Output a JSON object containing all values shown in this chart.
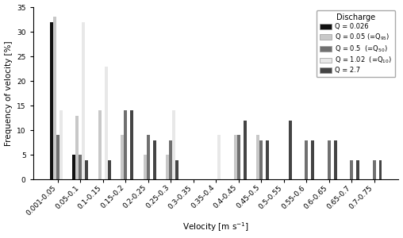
{
  "categories": [
    "0.001-0.05",
    "0.05-0.1",
    "0.1-0.15",
    "0.15-0.2",
    "0.2-0.25",
    "0.25-0.3",
    "0.3-0.35",
    "0.35-0.4",
    "0.4-0.45",
    "0.45-0.5",
    "0.5-0.55",
    "0.55-0.6",
    "0.6-0.65",
    "0.65-0.7",
    "0.7-0.75"
  ],
  "series": [
    {
      "label": "Q = 0.026",
      "color": "#111111",
      "values": [
        32,
        5,
        0,
        0,
        0,
        0,
        0,
        0,
        0,
        0,
        0,
        0,
        0,
        0,
        0
      ]
    },
    {
      "label": "Q = 0.05 (=Q$_{95}$)",
      "color": "#c8c8c8",
      "values": [
        33,
        13,
        14,
        9,
        5,
        5,
        0,
        0,
        9,
        9,
        0,
        0,
        0,
        0,
        0
      ]
    },
    {
      "label": "Q = 0.5  (=Q$_{50}$)",
      "color": "#707070",
      "values": [
        9,
        5,
        0,
        14,
        9,
        8,
        0,
        0,
        9,
        8,
        0,
        8,
        8,
        4,
        4
      ]
    },
    {
      "label": "Q = 1.02  (=Q$_{10}$)",
      "color": "#e8e8e8",
      "values": [
        14,
        32,
        23,
        0,
        0,
        14,
        0,
        9,
        0,
        0,
        0,
        0,
        0,
        0,
        0
      ]
    },
    {
      "label": "Q = 2.7",
      "color": "#444444",
      "values": [
        0,
        4,
        4,
        14,
        8,
        4,
        0,
        0,
        12,
        8,
        12,
        8,
        8,
        4,
        4
      ]
    }
  ],
  "ylabel": "Frequency of velocity [%]",
  "xlabel": "Velocity [m s$^{-1}$]",
  "legend_title": "Discharge",
  "ylim": [
    0,
    35
  ],
  "yticks": [
    0,
    5,
    10,
    15,
    20,
    25,
    30,
    35
  ],
  "bar_width": 0.14,
  "figsize": [
    5.08,
    3.0
  ],
  "dpi": 100
}
